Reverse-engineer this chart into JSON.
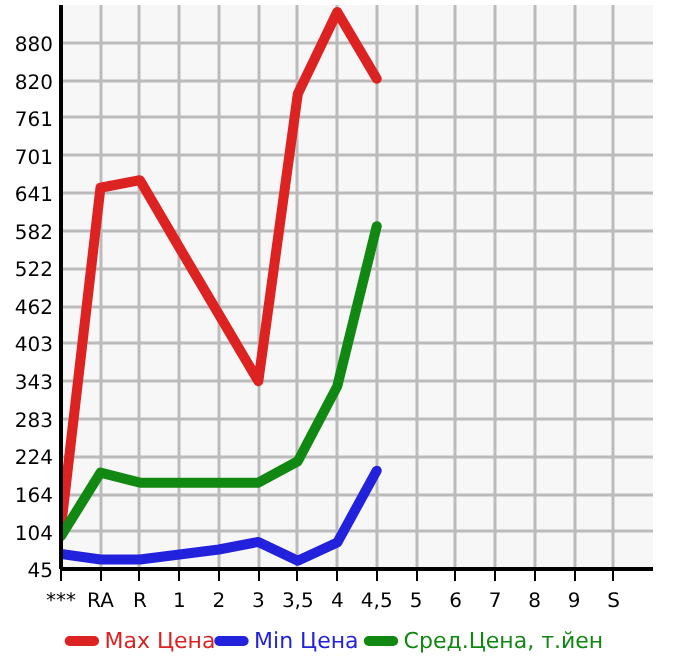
{
  "chart_data": {
    "type": "line",
    "categories": [
      "***",
      "RA",
      "R",
      "1",
      "2",
      "3",
      "3,5",
      "4",
      "4,5",
      "5",
      "6",
      "7",
      "8",
      "9",
      "S"
    ],
    "ylim": [
      45,
      940
    ],
    "yticks": [
      45,
      104,
      164,
      224,
      283,
      343,
      403,
      462,
      522,
      582,
      641,
      701,
      761,
      820,
      880
    ],
    "grid": true,
    "legend": "bottom",
    "marker": "none",
    "line_style": "solid",
    "series": [
      {
        "name": "Max Цена",
        "color": "#dd2222",
        "values": [
          111,
          650,
          662,
          555,
          449,
          343,
          799,
          929,
          823,
          null,
          null,
          null,
          null,
          null,
          null
        ]
      },
      {
        "name": "Min Цена",
        "color": "#2222dd",
        "values": [
          69,
          60,
          60,
          68,
          76,
          88,
          58,
          87,
          201,
          null,
          null,
          null,
          null,
          null,
          null
        ]
      },
      {
        "name": "Сред.Цена, т.йен",
        "color": "#118811",
        "values": [
          97,
          198,
          182,
          182,
          182,
          182,
          216,
          335,
          589,
          null,
          null,
          null,
          null,
          null,
          null
        ]
      }
    ]
  }
}
